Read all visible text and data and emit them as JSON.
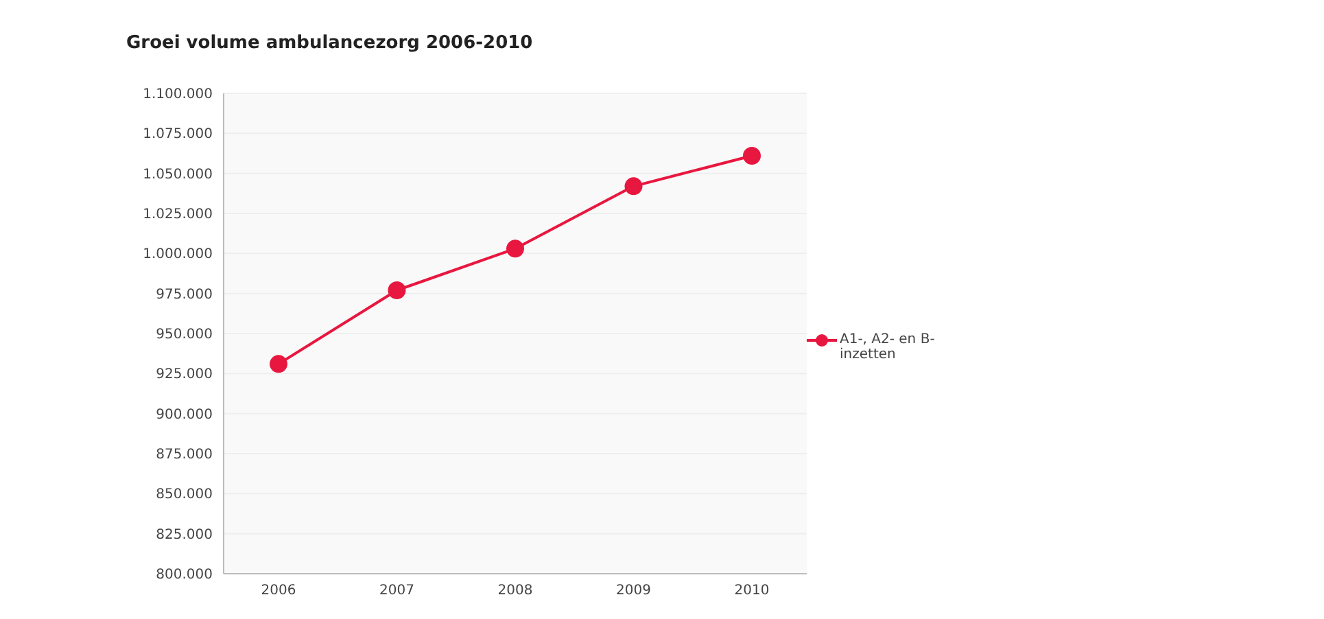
{
  "chart_data": {
    "type": "line",
    "title": "Groei volume ambulancezorg 2006-2010",
    "categories": [
      "2006",
      "2007",
      "2008",
      "2009",
      "2010"
    ],
    "series": [
      {
        "name": "A1-, A2- en B-inzetten",
        "color": "#e8173f",
        "values": [
          931000,
          977000,
          1003000,
          1042000,
          1061000
        ]
      }
    ],
    "ylim": [
      800000,
      1100000
    ],
    "yticks": [
      {
        "value": 800000,
        "label": "800.000"
      },
      {
        "value": 825000,
        "label": "825.000"
      },
      {
        "value": 850000,
        "label": "850.000"
      },
      {
        "value": 875000,
        "label": "875.000"
      },
      {
        "value": 900000,
        "label": "900.000"
      },
      {
        "value": 925000,
        "label": "925.000"
      },
      {
        "value": 950000,
        "label": "950.000"
      },
      {
        "value": 975000,
        "label": "975.000"
      },
      {
        "value": 1000000,
        "label": "1.000.000"
      },
      {
        "value": 1025000,
        "label": "1.025.000"
      },
      {
        "value": 1050000,
        "label": "1.050.000"
      },
      {
        "value": 1075000,
        "label": "1.075.000"
      },
      {
        "value": 1100000,
        "label": "1.100.000"
      }
    ],
    "grid": "y",
    "legend": "right",
    "marker": "circle",
    "line_style": "solid"
  }
}
